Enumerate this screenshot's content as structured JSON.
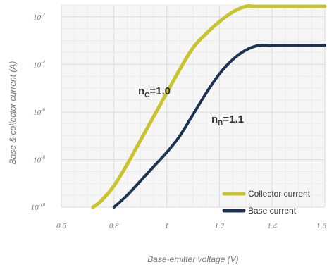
{
  "chart_data": {
    "type": "line",
    "title": "",
    "xlabel": "Base-emitter voltage (V)",
    "ylabel": "Base & collector current (A)",
    "xlim": [
      0.6,
      1.6
    ],
    "ylim": [
      -10,
      -1.5
    ],
    "y_scale": "log",
    "grid": true,
    "x_ticks": [
      0.6,
      0.8,
      1.0,
      1.2,
      1.4,
      1.6
    ],
    "x_tick_labels": [
      "0.6",
      "0.8",
      "1",
      "1.2",
      "1.4",
      "1.6"
    ],
    "y_ticks": [
      -2,
      -4,
      -6,
      -8,
      -10
    ],
    "y_tick_base": "10",
    "y_tick_exponents": [
      "-2",
      "-4",
      "-6",
      "-8",
      "-10"
    ],
    "legend_position": "bottom-right",
    "annotations": [
      {
        "main": "n",
        "sub": "C",
        "rest": "=1.0",
        "series": "Collector current"
      },
      {
        "main": "n",
        "sub": "B",
        "rest": "=1.1",
        "series": "Base current"
      }
    ],
    "series": [
      {
        "name": "Collector current",
        "color": "#c8c430",
        "x": [
          0.72,
          0.75,
          0.8,
          0.85,
          0.9,
          0.95,
          1.0,
          1.05,
          1.1,
          1.15,
          1.2,
          1.25,
          1.3,
          1.33,
          1.36,
          1.4,
          1.5,
          1.6
        ],
        "y": [
          -10.0,
          -9.75,
          -9.1,
          -8.2,
          -7.2,
          -6.2,
          -5.2,
          -4.2,
          -3.3,
          -2.7,
          -2.2,
          -1.8,
          -1.5,
          -1.32,
          -1.25,
          -1.25,
          -1.25,
          -1.25
        ]
      },
      {
        "name": "Base current",
        "color": "#1e3354",
        "x": [
          0.8,
          0.85,
          0.9,
          0.95,
          1.0,
          1.05,
          1.1,
          1.15,
          1.2,
          1.25,
          1.3,
          1.35,
          1.4,
          1.5,
          1.6
        ],
        "y": [
          -10.0,
          -9.5,
          -8.9,
          -8.3,
          -7.7,
          -7.0,
          -6.1,
          -5.2,
          -4.4,
          -3.8,
          -3.4,
          -3.2,
          -3.2,
          -3.2,
          -3.2
        ]
      }
    ]
  }
}
